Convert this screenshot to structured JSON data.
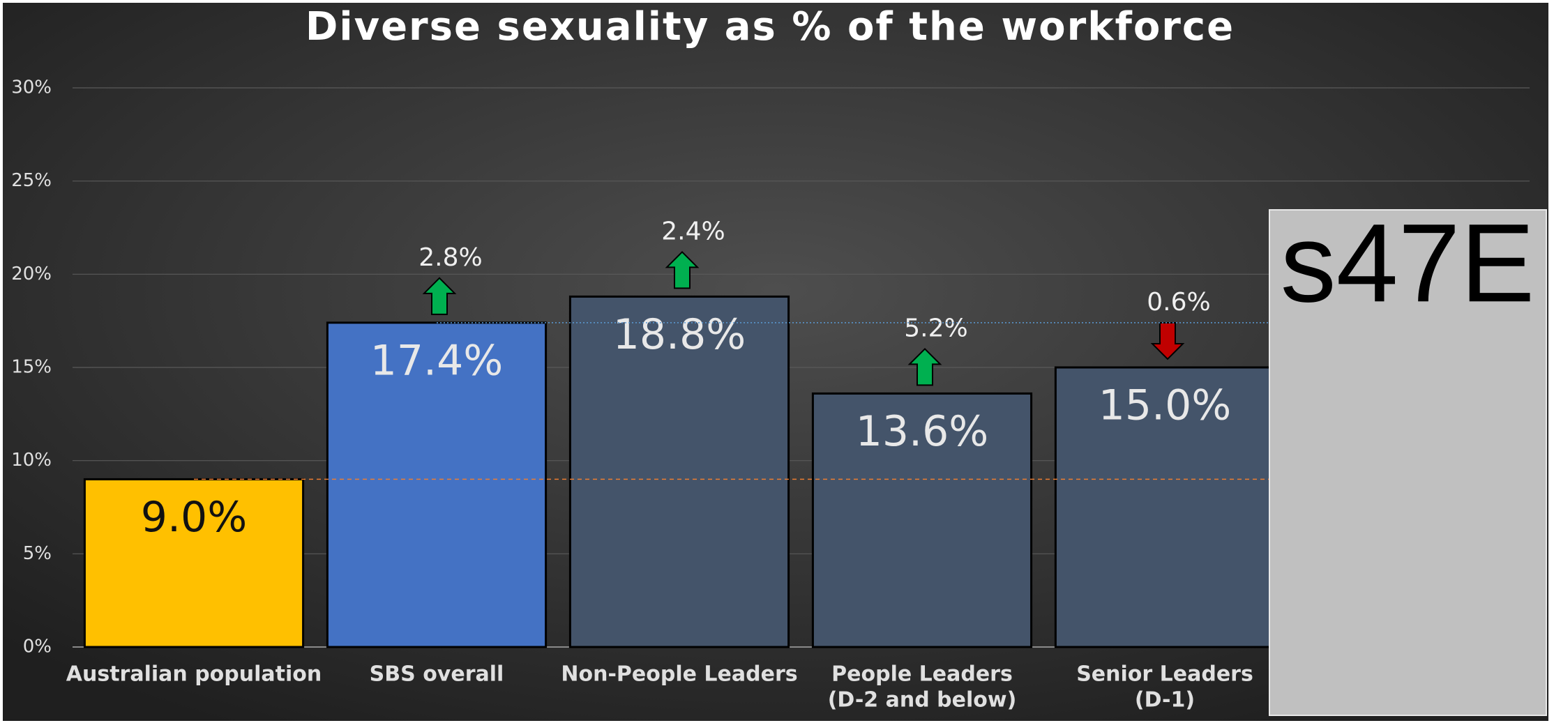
{
  "chart_data": {
    "type": "bar",
    "title": "Diverse sexuality as % of the workforce",
    "categories": [
      [
        "Australian population"
      ],
      [
        "SBS overall"
      ],
      [
        "Non-People Leaders"
      ],
      [
        "People Leaders",
        "(D-2 and below)"
      ],
      [
        "Senior Leaders",
        "(D-1)"
      ]
    ],
    "values": [
      9.0,
      17.4,
      18.8,
      13.6,
      15.0
    ],
    "value_labels": [
      "9.0%",
      "17.4%",
      "18.8%",
      "13.6%",
      "15.0%"
    ],
    "colors": [
      "#ffc000",
      "#4472c4",
      "#44546a",
      "#44546a",
      "#44546a"
    ],
    "change_values": [
      null,
      2.8,
      2.4,
      5.2,
      -0.6
    ],
    "change_labels": [
      null,
      "2.8%",
      "2.4%",
      "5.2%",
      "0.6%"
    ],
    "reference_line_colors": [
      "#ed7d31",
      "#5b9bd5"
    ],
    "ylim": [
      0,
      30
    ],
    "yticks": [
      {
        "value": 0,
        "label": "0%"
      },
      {
        "value": 5,
        "label": "5%"
      },
      {
        "value": 10,
        "label": "10%"
      },
      {
        "value": 15,
        "label": "15%"
      },
      {
        "value": 20,
        "label": "20%"
      },
      {
        "value": 25,
        "label": "25%"
      },
      {
        "value": 30,
        "label": "30%"
      }
    ],
    "grid": true,
    "redaction": "s47E"
  }
}
